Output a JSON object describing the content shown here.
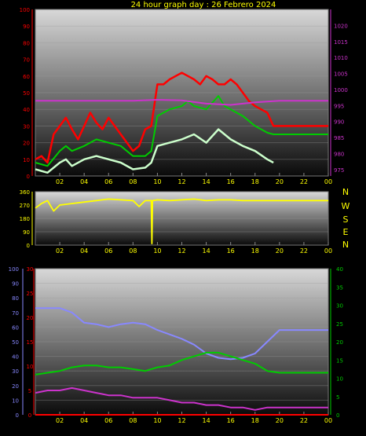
{
  "title": "24 hour graph day : 26 Febrero 2024",
  "colors": {
    "title": "#ffff00",
    "gust": "#ff0000",
    "avg": "#00cc00",
    "wind": "#ccffcc",
    "pressure": "#cc33cc",
    "direction": "#ffff00",
    "humidity": "#8888ff",
    "temp": "#00cc00",
    "dew": "#cc33cc",
    "rain": "#ff0000",
    "axis_left": "#ff0000",
    "axis_right_top": "#cc33cc",
    "axis_right_bottom": "#00cc00",
    "axis_humidity": "#8888ff",
    "x_ticks": "#ffff00"
  },
  "compass": [
    "N",
    "W",
    "S",
    "E",
    "N"
  ],
  "chart_data": [
    {
      "type": "line",
      "name_panel": "wind-pressure",
      "x_ticks": [
        "02",
        "04",
        "06",
        "08",
        "10",
        "12",
        "14",
        "16",
        "18",
        "20",
        "22",
        "00"
      ],
      "xlim": [
        0,
        24
      ],
      "y_left_ticks": [
        "100",
        "90",
        "80",
        "70",
        "60",
        "50",
        "40",
        "30",
        "20",
        "10",
        "0"
      ],
      "ylim_left": [
        0,
        100
      ],
      "y_right_ticks": [
        "1020",
        "1015",
        "1010",
        "1005",
        "1000",
        "995",
        "990",
        "985",
        "980",
        "975"
      ],
      "ylim_right": [
        973,
        1025
      ],
      "gust": {
        "x": [
          0,
          0.5,
          1,
          1.5,
          2,
          2.5,
          3,
          3.5,
          4,
          4.5,
          5,
          5.5,
          6,
          6.5,
          7,
          7.5,
          8,
          8.5,
          9,
          9.5,
          10,
          10.5,
          11,
          11.5,
          12,
          12.5,
          13,
          13.5,
          14,
          14.5,
          15,
          15.5,
          16,
          16.5,
          17,
          17.5,
          18,
          18.5,
          19,
          19.5,
          20,
          22,
          24
        ],
        "y": [
          10,
          12,
          8,
          25,
          30,
          35,
          28,
          22,
          30,
          38,
          32,
          28,
          35,
          30,
          25,
          20,
          15,
          18,
          28,
          30,
          55,
          55,
          58,
          60,
          62,
          60,
          58,
          55,
          60,
          58,
          55,
          55,
          58,
          55,
          50,
          45,
          42,
          40,
          38,
          30,
          30,
          30,
          30
        ]
      },
      "avg": {
        "x": [
          0,
          1,
          2,
          2.5,
          3,
          4,
          5,
          6,
          7,
          8,
          9,
          9.5,
          10,
          10.5,
          11,
          12,
          12.5,
          13,
          14,
          15,
          15.5,
          16,
          17,
          18,
          19,
          19.5,
          20,
          24
        ],
        "y": [
          8,
          6,
          15,
          18,
          15,
          18,
          22,
          20,
          18,
          12,
          12,
          15,
          36,
          38,
          40,
          42,
          45,
          42,
          40,
          48,
          42,
          40,
          36,
          30,
          26,
          25,
          25,
          25
        ]
      },
      "wind": {
        "x": [
          0,
          1,
          2,
          2.5,
          3,
          4,
          5,
          6,
          7,
          8,
          9,
          9.5,
          10,
          11,
          12,
          13,
          14,
          15,
          16,
          17,
          18,
          19,
          19.5
        ],
        "y": [
          4,
          2,
          8,
          10,
          6,
          10,
          12,
          10,
          8,
          4,
          5,
          8,
          18,
          20,
          22,
          25,
          20,
          28,
          22,
          18,
          15,
          10,
          8
        ]
      },
      "pressure": {
        "x": [
          0,
          2,
          4,
          6,
          8,
          10,
          12,
          14,
          16,
          18,
          20,
          22,
          24
        ],
        "y": [
          996.5,
          996.5,
          996.5,
          996.5,
          996.5,
          996.8,
          996.6,
          995.6,
          995.2,
          996,
          996.5,
          996.5,
          996.5
        ]
      }
    },
    {
      "type": "line",
      "name_panel": "wind-direction",
      "x_ticks": [
        "02",
        "04",
        "06",
        "08",
        "10",
        "12",
        "14",
        "16",
        "18",
        "20",
        "22",
        "00"
      ],
      "xlim": [
        0,
        24
      ],
      "y_ticks": [
        "360",
        "270",
        "180",
        "90",
        "0"
      ],
      "ylim": [
        0,
        360
      ],
      "series": [
        {
          "name": "direction",
          "x": [
            0,
            0.5,
            1,
            1.5,
            2,
            3,
            4,
            5,
            6,
            7,
            8,
            8.5,
            9,
            9.5,
            9.55,
            9.6,
            10,
            11,
            12,
            13,
            14,
            15,
            16,
            17,
            18,
            19,
            20,
            24
          ],
          "y": [
            250,
            280,
            300,
            230,
            270,
            280,
            290,
            300,
            310,
            305,
            300,
            260,
            300,
            300,
            10,
            300,
            305,
            300,
            305,
            310,
            300,
            305,
            305,
            300,
            300,
            300,
            300,
            300
          ]
        }
      ]
    },
    {
      "type": "line",
      "name_panel": "temp-humidity",
      "x_ticks": [
        "02",
        "04",
        "06",
        "08",
        "10",
        "12",
        "14",
        "16",
        "18",
        "20",
        "22",
        "00"
      ],
      "xlim": [
        0,
        24
      ],
      "y_humidity_ticks": [
        "100",
        "90",
        "80",
        "70",
        "60",
        "50",
        "40",
        "30",
        "20",
        "10",
        "0"
      ],
      "ylim_humidity": [
        0,
        100
      ],
      "y_left_ticks": [
        "30",
        "25",
        "20",
        "15",
        "10",
        "5",
        "0"
      ],
      "ylim_left": [
        0,
        30
      ],
      "y_right_ticks": [
        "40",
        "35",
        "30",
        "25",
        "20",
        "15",
        "10",
        "5",
        "0"
      ],
      "ylim_right": [
        0,
        40
      ],
      "humidity": {
        "x": [
          0,
          1,
          2,
          3,
          4,
          5,
          6,
          7,
          8,
          9,
          10,
          11,
          12,
          13,
          14,
          15,
          16,
          17,
          18,
          19,
          20,
          24
        ],
        "y": [
          73,
          73,
          73,
          70,
          63,
          62,
          60,
          62,
          63,
          62,
          58,
          55,
          52,
          48,
          42,
          39,
          38,
          39,
          42,
          50,
          58,
          58
        ]
      },
      "temp": {
        "x": [
          0,
          1,
          2,
          3,
          4,
          5,
          6,
          7,
          8,
          9,
          10,
          11,
          12,
          13,
          14,
          15,
          16,
          17,
          18,
          19,
          20,
          24
        ],
        "y": [
          11,
          11.5,
          12,
          13,
          13.5,
          13.5,
          13,
          13,
          12.5,
          12,
          13,
          13.5,
          15,
          16,
          17,
          17,
          16,
          15,
          14,
          12,
          11.5,
          11.5
        ]
      },
      "dew": {
        "x": [
          0,
          1,
          2,
          3,
          4,
          5,
          6,
          7,
          8,
          9,
          10,
          11,
          12,
          13,
          14,
          15,
          16,
          17,
          18,
          19,
          20,
          24
        ],
        "y": [
          4.5,
          5,
          5,
          5.5,
          5,
          4.5,
          4,
          4,
          3.5,
          3.5,
          3.5,
          3,
          2.5,
          2.5,
          2,
          2,
          1.5,
          1.5,
          1,
          1.5,
          1.5,
          1.5
        ]
      },
      "rain": {
        "x": [
          0,
          24
        ],
        "y": [
          0,
          0
        ]
      }
    }
  ]
}
